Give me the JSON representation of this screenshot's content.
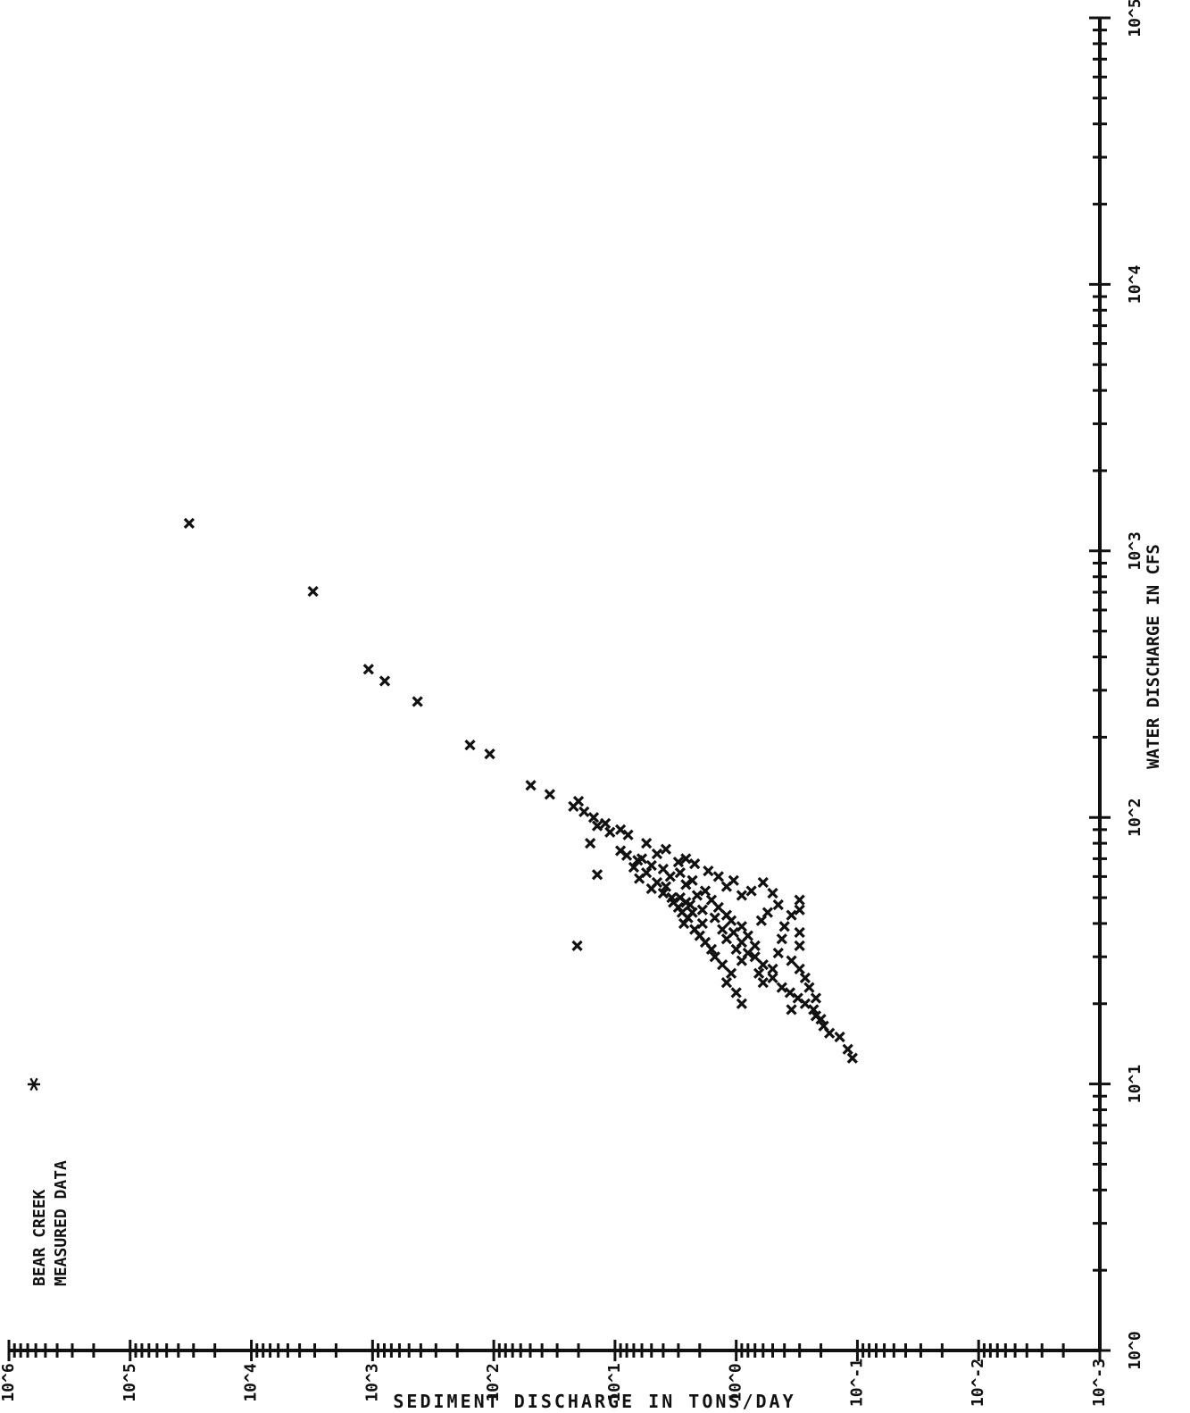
{
  "chart_data": {
    "type": "scatter",
    "title": "",
    "xlabel": "WATER DISCHARGE IN CFS",
    "ylabel": "SEDIMENT DISCHARGE IN TONS/DAY",
    "x_scale": "log",
    "y_scale": "log",
    "xlim": [
      1,
      100000
    ],
    "ylim": [
      0.001,
      1000000
    ],
    "x_ticks": [
      1,
      10,
      100,
      1000,
      10000,
      100000
    ],
    "x_tick_labels": [
      "10^0",
      "10^1",
      "10^2",
      "10^3",
      "10^4",
      "10^5"
    ],
    "y_ticks": [
      0.001,
      0.01,
      0.1,
      1,
      10,
      100,
      1000,
      10000,
      100000,
      1000000
    ],
    "y_tick_labels": [
      "10^-3",
      "10^-2",
      "10^-1",
      "10^0",
      "10^1",
      "10^2",
      "10^3",
      "10^4",
      "10^5",
      "10^6"
    ],
    "grid": false,
    "legend": {
      "position": "top-left",
      "lines": [
        "BEAR CREEK",
        "MEASURED DATA"
      ],
      "marker": "*"
    },
    "series": [
      {
        "name": "BEAR CREEK MEASURED DATA",
        "marker": "x",
        "color": "#111111",
        "points": [
          [
            1270,
            32600
          ],
          [
            705,
            3100
          ],
          [
            360,
            1080
          ],
          [
            325,
            793
          ],
          [
            272,
            426
          ],
          [
            187,
            157
          ],
          [
            173,
            108
          ],
          [
            132,
            49.5
          ],
          [
            122,
            34.5
          ],
          [
            110,
            22
          ],
          [
            115,
            20
          ],
          [
            105,
            18
          ],
          [
            100,
            15
          ],
          [
            95,
            12
          ],
          [
            90,
            9
          ],
          [
            93,
            14
          ],
          [
            88,
            11
          ],
          [
            86,
            7.8
          ],
          [
            80,
            5.5
          ],
          [
            76,
            3.8
          ],
          [
            73,
            4.5
          ],
          [
            70,
            6
          ],
          [
            68,
            3
          ],
          [
            66,
            5
          ],
          [
            64,
            4
          ],
          [
            62,
            2.9
          ],
          [
            60,
            3.5
          ],
          [
            58,
            2.3
          ],
          [
            56,
            2.6
          ],
          [
            55,
            3.8
          ],
          [
            53,
            1.8
          ],
          [
            51,
            2.1
          ],
          [
            50,
            2.9
          ],
          [
            49,
            1.6
          ],
          [
            48,
            2.6
          ],
          [
            47,
            2.4
          ],
          [
            46,
            1.4
          ],
          [
            45,
            1.9
          ],
          [
            44,
            2.3
          ],
          [
            43,
            1.2
          ],
          [
            42,
            1.5
          ],
          [
            41,
            1.1
          ],
          [
            40,
            1.9
          ],
          [
            39,
            0.9
          ],
          [
            38,
            1.3
          ],
          [
            37,
            1.05
          ],
          [
            36,
            0.8
          ],
          [
            35,
            1.2
          ],
          [
            34,
            0.9
          ],
          [
            33,
            0.7
          ],
          [
            32,
            1.0
          ],
          [
            31,
            0.8
          ],
          [
            30,
            0.7
          ],
          [
            29,
            0.9
          ],
          [
            28,
            0.6
          ],
          [
            27,
            0.5
          ],
          [
            26,
            0.65
          ],
          [
            25,
            0.5
          ],
          [
            24,
            0.6
          ],
          [
            23,
            0.42
          ],
          [
            22,
            0.36
          ],
          [
            21,
            0.31
          ],
          [
            20,
            0.27
          ],
          [
            19,
            0.23
          ],
          [
            18,
            0.22
          ],
          [
            17.5,
            0.2
          ],
          [
            16.5,
            0.19
          ],
          [
            15.5,
            0.17
          ],
          [
            15,
            0.14
          ],
          [
            13.5,
            0.12
          ],
          [
            12.5,
            0.11
          ],
          [
            75,
            9
          ],
          [
            72,
            8
          ],
          [
            69,
            6.5
          ],
          [
            65,
            7
          ],
          [
            62,
            5.5
          ],
          [
            59,
            6.3
          ],
          [
            57,
            4.5
          ],
          [
            54,
            5
          ],
          [
            52,
            4
          ],
          [
            50,
            3.4
          ],
          [
            48,
            3.3
          ],
          [
            46,
            3
          ],
          [
            44,
            2.8
          ],
          [
            42,
            2.5
          ],
          [
            40,
            2.7
          ],
          [
            38,
            2.2
          ],
          [
            36,
            2
          ],
          [
            34,
            1.8
          ],
          [
            32,
            1.6
          ],
          [
            30,
            1.5
          ],
          [
            28,
            1.3
          ],
          [
            26,
            1.1
          ],
          [
            24,
            1.2
          ],
          [
            22,
            1
          ],
          [
            20,
            0.9
          ],
          [
            33,
            20.5
          ],
          [
            80,
            16
          ],
          [
            61,
            14
          ],
          [
            45,
            0.3
          ],
          [
            47,
            0.45
          ],
          [
            49,
            0.3
          ],
          [
            44,
            0.55
          ],
          [
            43,
            0.35
          ],
          [
            41,
            0.62
          ],
          [
            39,
            0.4
          ],
          [
            37,
            0.3
          ],
          [
            35,
            0.42
          ],
          [
            33,
            0.3
          ],
          [
            31,
            0.45
          ],
          [
            29,
            0.35
          ],
          [
            27,
            0.3
          ],
          [
            25,
            0.27
          ],
          [
            23,
            0.25
          ],
          [
            21,
            0.22
          ],
          [
            19,
            0.35
          ],
          [
            55,
            1.2
          ],
          [
            53,
            0.75
          ],
          [
            51,
            0.9
          ],
          [
            58,
            1.05
          ],
          [
            60,
            1.4
          ],
          [
            63,
            1.7
          ],
          [
            67,
            2.2
          ],
          [
            70,
            2.6
          ],
          [
            57,
            0.6
          ],
          [
            52,
            0.5
          ]
        ]
      }
    ]
  }
}
